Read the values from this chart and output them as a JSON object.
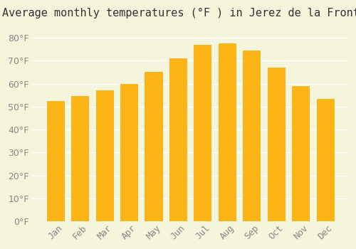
{
  "title": "Average monthly temperatures (°F ) in Jerez de la Frontera",
  "months": [
    "Jan",
    "Feb",
    "Mar",
    "Apr",
    "May",
    "Jun",
    "Jul",
    "Aug",
    "Sep",
    "Oct",
    "Nov",
    "Dec"
  ],
  "values": [
    52.5,
    54.5,
    57.0,
    60.0,
    65.0,
    71.0,
    77.0,
    77.5,
    74.5,
    67.0,
    59.0,
    53.5
  ],
  "bar_color_face": "#FDB515",
  "bar_color_edge": "#F5A800",
  "background_color": "#F5F5DC",
  "grid_color": "#FFFFFF",
  "text_color": "#888888",
  "ylim": [
    0,
    85
  ],
  "yticks": [
    0,
    10,
    20,
    30,
    40,
    50,
    60,
    70,
    80
  ],
  "title_fontsize": 11,
  "tick_fontsize": 9
}
